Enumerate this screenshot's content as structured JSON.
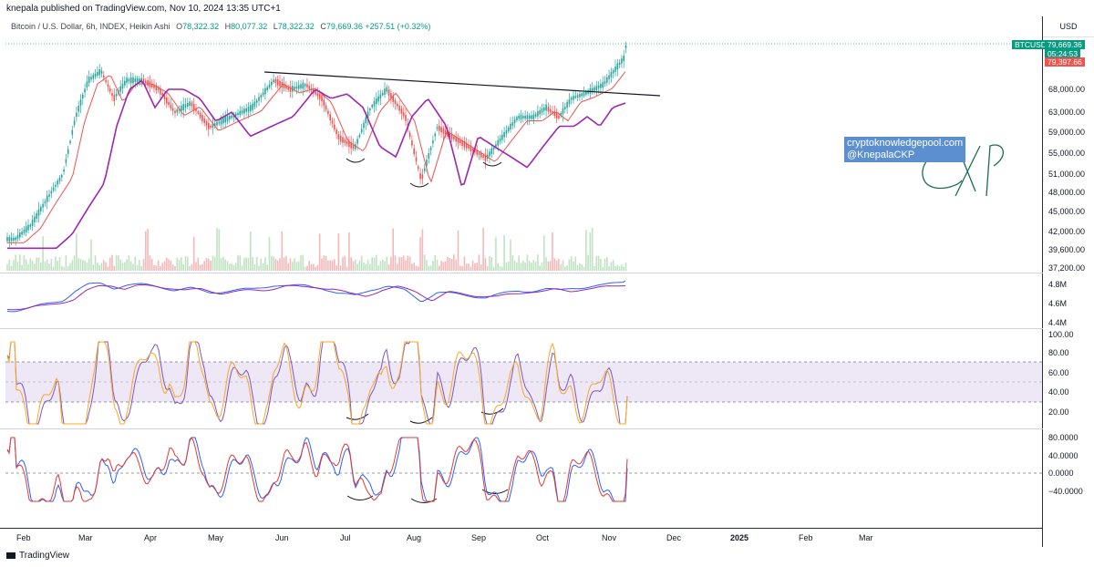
{
  "header": {
    "publisher": "knepala published on TradingView.com, Nov 10, 2024 13:35 UTC+1"
  },
  "legend": {
    "symbol": "Bitcoin / U.S. Dollar, 6h, INDEX, Heikin Ashi",
    "o_label": "O",
    "o": "78,322.32",
    "h_label": "H",
    "h": "80,077.32",
    "l_label": "L",
    "l": "78,322.32",
    "c_label": "C",
    "c": "79,669.36",
    "change": "+257.51 (+0.32%)"
  },
  "axis": {
    "currency": "USD"
  },
  "tags": {
    "symbol": "BTCUSD",
    "price": "79,669.36",
    "countdown": "05:24:53",
    "prev": "79,397.66"
  },
  "watermark": {
    "line1": "cryptoknowledgepool.com",
    "line2": "@KnepalaCKP"
  },
  "footer": {
    "brand": "TradingView"
  },
  "colors": {
    "up": "#26a69a",
    "down": "#ef5350",
    "ma": "#c2185b",
    "ma_long": "#9c27b0",
    "rsi": "#7e57c2",
    "rsi_band": "#ede7f6",
    "watermark": "#5b8fd0"
  },
  "chart_data": [
    {
      "type": "candlestick",
      "title": "Bitcoin / U.S. Dollar, 6h, INDEX, Heikin Ashi",
      "x": [
        "Feb",
        "Mar",
        "Apr",
        "May",
        "Jun",
        "Jul",
        "Aug",
        "Sep",
        "Oct",
        "Nov",
        "Dec",
        "2025",
        "Feb",
        "Mar"
      ],
      "price_ticks": [
        "68,000.00",
        "63,000.00",
        "59,000.00",
        "55,000.00",
        "51,000.00",
        "48,000.00",
        "45,000.00",
        "42,000.00",
        "39,600.00",
        "37,200.00"
      ],
      "price_series": [
        [
          "Feb",
          41000
        ],
        [
          "Feb",
          43000
        ],
        [
          "Feb",
          47000
        ],
        [
          "Feb",
          51000
        ],
        [
          "Mar",
          62000
        ],
        [
          "Mar",
          70000
        ],
        [
          "Mar",
          72000
        ],
        [
          "Mar",
          66000
        ],
        [
          "Mar",
          70000
        ],
        [
          "Apr",
          70000
        ],
        [
          "Apr",
          68000
        ],
        [
          "Apr",
          63000
        ],
        [
          "Apr",
          65000
        ],
        [
          "May",
          60000
        ],
        [
          "May",
          62000
        ],
        [
          "May",
          64000
        ],
        [
          "Jun",
          70000
        ],
        [
          "Jun",
          68000
        ],
        [
          "Jun",
          69000
        ],
        [
          "Jun",
          66000
        ],
        [
          "Jul",
          58000
        ],
        [
          "Jul",
          56000
        ],
        [
          "Jul",
          64000
        ],
        [
          "Jul",
          68000
        ],
        [
          "Aug",
          62000
        ],
        [
          "Aug",
          50000
        ],
        [
          "Aug",
          60000
        ],
        [
          "Aug",
          58000
        ],
        [
          "Sep",
          56000
        ],
        [
          "Sep",
          54000
        ],
        [
          "Sep",
          58000
        ],
        [
          "Sep",
          62000
        ],
        [
          "Oct",
          62000
        ],
        [
          "Oct",
          64000
        ],
        [
          "Oct",
          62000
        ],
        [
          "Oct",
          66000
        ],
        [
          "Oct",
          67000
        ],
        [
          "Nov",
          69000
        ],
        [
          "Nov",
          75000
        ],
        [
          "Nov",
          79669
        ]
      ],
      "ma_short": "red moving average",
      "ma_long": "purple moving average",
      "trendline": "descending resistance line",
      "grid": false
    },
    {
      "type": "line",
      "title": "",
      "ticks": [
        "4.8M",
        "4.6M",
        "4.4M"
      ]
    },
    {
      "type": "line",
      "title": "",
      "ticks": [
        "100.00",
        "80.00",
        "60.00",
        "40.00",
        "20.00"
      ],
      "band": [
        30,
        70
      ]
    },
    {
      "type": "line",
      "title": "",
      "ticks": [
        "80.0000",
        "40.0000",
        "0.0000",
        "−40.0000"
      ]
    }
  ]
}
